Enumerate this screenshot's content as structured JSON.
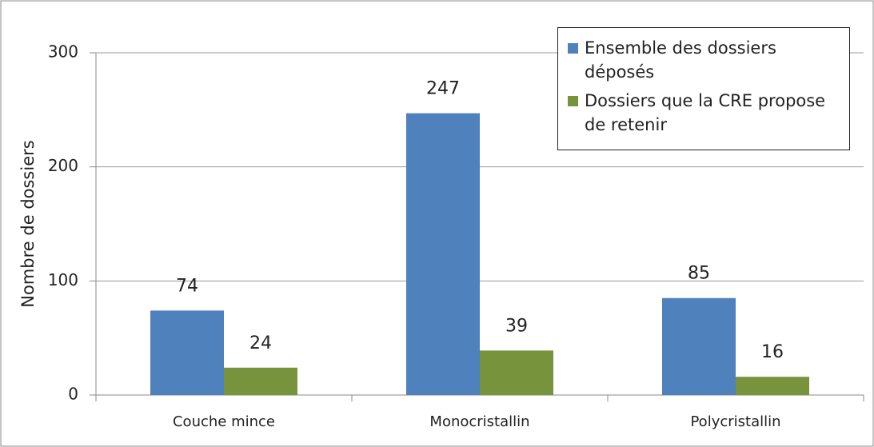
{
  "chart_data": {
    "type": "bar",
    "y_label": "Nombre de dossiers",
    "categories": [
      "Couche mince",
      "Monocristallin",
      "Polycristallin"
    ],
    "series": [
      {
        "name": "Ensemble des dossiers déposés",
        "color": "#4f81bd",
        "values": [
          74,
          247,
          85
        ]
      },
      {
        "name": "Dossiers que la CRE propose de retenir",
        "color": "#77933c",
        "values": [
          24,
          39,
          16
        ]
      }
    ],
    "ylim": [
      0,
      300
    ],
    "yticks": [
      0,
      100,
      200,
      300
    ],
    "grid": true,
    "legend": "upper right"
  }
}
